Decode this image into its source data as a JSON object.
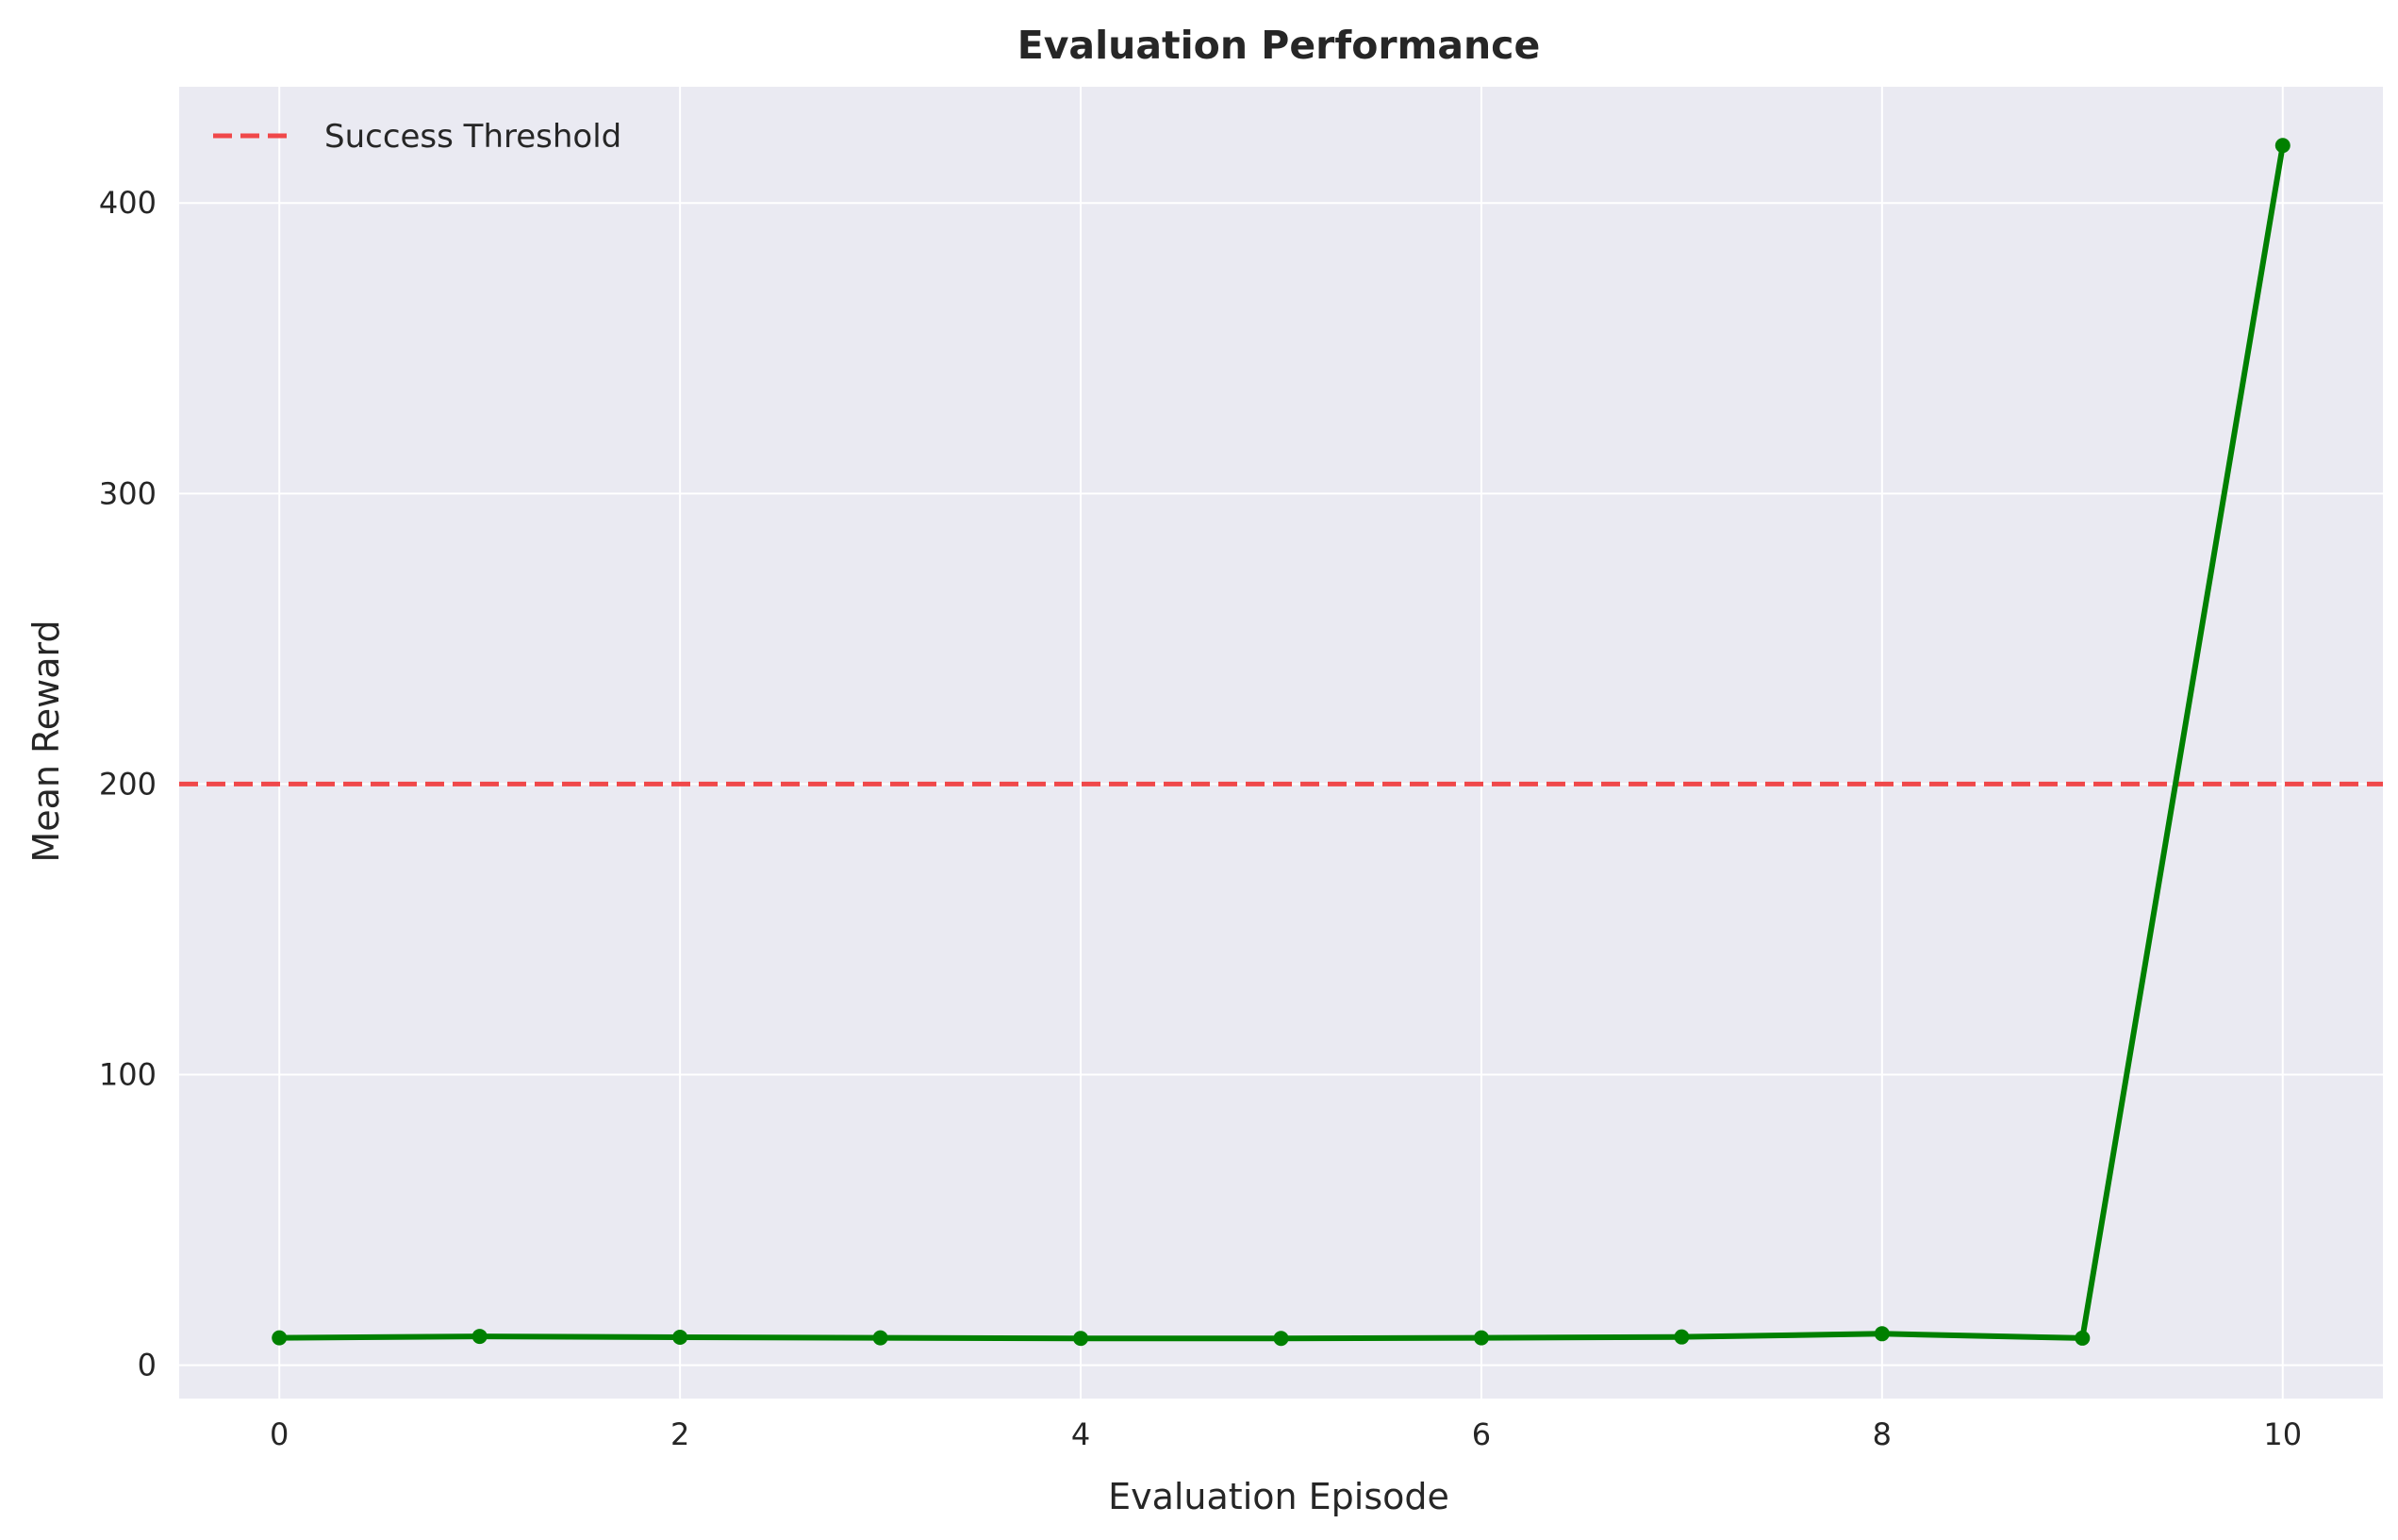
{
  "chart_data": {
    "type": "line",
    "title": "Evaluation Performance",
    "xlabel": "Evaluation Episode",
    "ylabel": "Mean Reward",
    "xlim": [
      -0.5,
      10.5
    ],
    "ylim": [
      -11.5,
      440
    ],
    "xticks": [
      0,
      2,
      4,
      6,
      8,
      10
    ],
    "yticks": [
      0,
      100,
      200,
      300,
      400
    ],
    "grid": true,
    "legend_position": "top-left",
    "series": [
      {
        "x": [
          0,
          1,
          2,
          3,
          4,
          5,
          6,
          7,
          8,
          9,
          10
        ],
        "values": [
          9.4,
          9.9,
          9.6,
          9.4,
          9.2,
          9.2,
          9.4,
          9.7,
          10.8,
          9.3,
          419.8
        ],
        "color": "#008000",
        "marker": "circle"
      }
    ],
    "reference_lines": [
      {
        "name": "Success Threshold",
        "y": 200,
        "color": "#f0484a",
        "style": "dashed"
      }
    ]
  }
}
